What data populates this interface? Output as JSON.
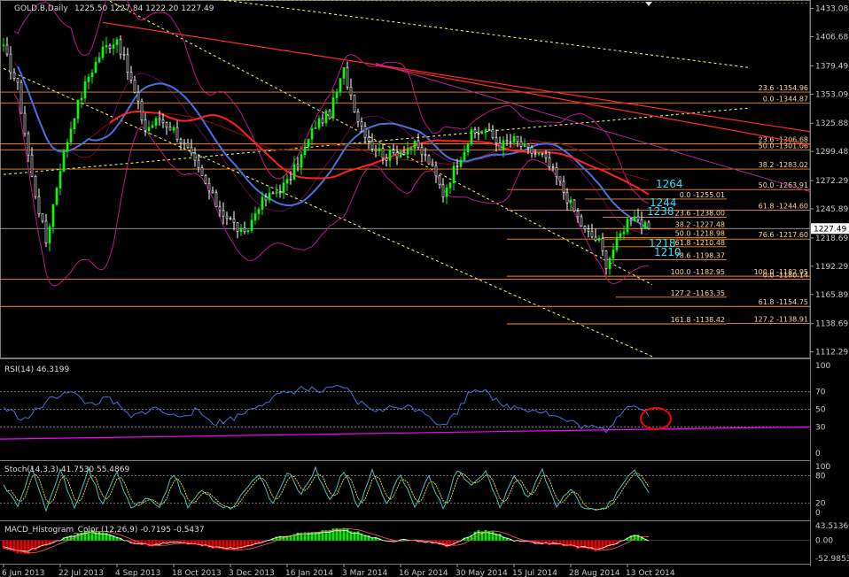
{
  "window": {
    "symbol_line": "GOLD.B,Daily",
    "ohlc_line": "1225.50 1227.84 1222.20 1227.49",
    "last_price_label": "1227.49"
  },
  "colors": {
    "background": "#000000",
    "candle_up": "#00ff00",
    "candle_down": "#ffffff",
    "ma_blue": "#4a6fdf",
    "ma_red": "#ff2020",
    "bollinger": "#c0168c",
    "fib_line": "#ff8c1a",
    "fib_text": "#ffd39a",
    "trend_red": "#ff2a2a",
    "trend_magenta": "#b02aa8",
    "dotted_yellow": "#ffff66",
    "rsi_line": "#4a6fdf",
    "rsi_trend": "#ff00ff",
    "stoch_main": "#4fbfbf",
    "stoch_signal": "#ffe040",
    "macd_up": "#00ee00",
    "macd_down": "#ee0000",
    "cyan_label": "#33e0ff",
    "highlight_circle": "#ff0000",
    "grid_text": "#c8c8c8"
  },
  "chart_data": [
    {
      "type": "line",
      "panel": "price",
      "title": "GOLD.B,Daily",
      "y_ticks": [
        "1433.08",
        "1406.68",
        "1379.49",
        "1353.09",
        "1325.88",
        "1299.48",
        "1272.29",
        "1245.89",
        "1218.69",
        "1192.29",
        "1165.89",
        "1138.69",
        "1112.29"
      ],
      "ylim": [
        1107,
        1441
      ],
      "x_ticks": [
        "6 Jun 2013",
        "22 Jul 2013",
        "4 Sep 2013",
        "18 Oct 2013",
        "3 Dec 2013",
        "16 Jan 2014",
        "3 Mar 2014",
        "16 Apr 2014",
        "30 May 2014",
        "15 Jul 2014",
        "28 Aug 2014",
        "13 Oct 2014"
      ],
      "x_tick_index": [
        0,
        16,
        32,
        48,
        64,
        80,
        96,
        112,
        128,
        144,
        160,
        176
      ],
      "bar_count": 183,
      "close_knots": [
        [
          0,
          1395
        ],
        [
          4,
          1360
        ],
        [
          8,
          1275
        ],
        [
          12,
          1215
        ],
        [
          16,
          1285
        ],
        [
          20,
          1335
        ],
        [
          24,
          1370
        ],
        [
          28,
          1395
        ],
        [
          32,
          1405
        ],
        [
          36,
          1365
        ],
        [
          40,
          1320
        ],
        [
          44,
          1330
        ],
        [
          48,
          1320
        ],
        [
          52,
          1300
        ],
        [
          56,
          1275
        ],
        [
          60,
          1250
        ],
        [
          64,
          1235
        ],
        [
          68,
          1220
        ],
        [
          72,
          1250
        ],
        [
          76,
          1260
        ],
        [
          80,
          1270
        ],
        [
          84,
          1295
        ],
        [
          88,
          1325
        ],
        [
          92,
          1335
        ],
        [
          96,
          1375
        ],
        [
          100,
          1330
        ],
        [
          104,
          1305
        ],
        [
          108,
          1295
        ],
        [
          112,
          1300
        ],
        [
          116,
          1305
        ],
        [
          120,
          1290
        ],
        [
          124,
          1260
        ],
        [
          128,
          1290
        ],
        [
          132,
          1315
        ],
        [
          136,
          1320
        ],
        [
          140,
          1305
        ],
        [
          144,
          1310
        ],
        [
          148,
          1300
        ],
        [
          152,
          1295
        ],
        [
          156,
          1275
        ],
        [
          160,
          1250
        ],
        [
          164,
          1225
        ],
        [
          168,
          1215
        ],
        [
          170,
          1195
        ],
        [
          173,
          1215
        ],
        [
          176,
          1235
        ],
        [
          178,
          1242
        ],
        [
          180,
          1230
        ],
        [
          182,
          1227.49
        ]
      ],
      "fib_levels": [
        {
          "label": "23.6 -1354.96",
          "value": 1354.96
        },
        {
          "label": "0.0 -1344.87",
          "value": 1344.87
        },
        {
          "label": "23.6 -1306.68",
          "value": 1306.68
        },
        {
          "label": "50.0 -1301.06",
          "value": 1301.06
        },
        {
          "label": "38.2 -1283.02",
          "value": 1283.02
        },
        {
          "label": "50.0 -1263.91",
          "value": 1263.91
        },
        {
          "label": "0.0 -1255.01",
          "value": 1255.01
        },
        {
          "label": "61.8 -1244.60",
          "value": 1244.6
        },
        {
          "label": "23.6 -1238.00",
          "value": 1238.0
        },
        {
          "label": "38.2 -1227.48",
          "value": 1227.48
        },
        {
          "label": "50.0 -1218.98",
          "value": 1218.98
        },
        {
          "label": "76.6 -1217.60",
          "value": 1217.6
        },
        {
          "label": "61.8 -1210.48",
          "value": 1210.48
        },
        {
          "label": "78.6 -1198.37",
          "value": 1198.37
        },
        {
          "label": "100.0 -1182.95",
          "value": 1182.95
        },
        {
          "label": "100.0 -1182.95",
          "value": 1182.95
        },
        {
          "label": "0.0 -1180.14",
          "value": 1180.14
        },
        {
          "label": "127.2 -1163.35",
          "value": 1163.35
        },
        {
          "label": "61.8 -1154.75",
          "value": 1154.75
        },
        {
          "label": "161.8 -1138.42",
          "value": 1138.42
        },
        {
          "label": "127.2 -1138.91",
          "value": 1138.91
        }
      ],
      "annotations": [
        "1264",
        "1244",
        "1238",
        "1218",
        "1210"
      ]
    },
    {
      "type": "line",
      "panel": "rsi",
      "title": "RSI(14) 46.3199",
      "y_ticks": [
        "100",
        "70",
        "50",
        "30",
        "0"
      ],
      "ylim": [
        0,
        100
      ],
      "knots": [
        [
          0,
          52
        ],
        [
          6,
          38
        ],
        [
          12,
          58
        ],
        [
          18,
          72
        ],
        [
          24,
          56
        ],
        [
          30,
          62
        ],
        [
          36,
          40
        ],
        [
          42,
          52
        ],
        [
          48,
          42
        ],
        [
          54,
          48
        ],
        [
          60,
          34
        ],
        [
          66,
          42
        ],
        [
          72,
          56
        ],
        [
          78,
          66
        ],
        [
          84,
          74
        ],
        [
          90,
          70
        ],
        [
          96,
          76
        ],
        [
          100,
          58
        ],
        [
          106,
          48
        ],
        [
          112,
          54
        ],
        [
          118,
          50
        ],
        [
          124,
          30
        ],
        [
          128,
          48
        ],
        [
          132,
          72
        ],
        [
          136,
          74
        ],
        [
          140,
          54
        ],
        [
          146,
          52
        ],
        [
          152,
          48
        ],
        [
          158,
          38
        ],
        [
          164,
          30
        ],
        [
          170,
          26
        ],
        [
          176,
          56
        ],
        [
          180,
          50
        ],
        [
          182,
          46.3
        ]
      ]
    },
    {
      "type": "line",
      "panel": "stochastic",
      "title": "Stoch(14,3,3) 41.7530 55.4869",
      "y_ticks": [
        "100",
        "80",
        "20",
        "0"
      ],
      "ylim": [
        0,
        100
      ],
      "knots": [
        [
          0,
          60
        ],
        [
          4,
          10
        ],
        [
          8,
          95
        ],
        [
          12,
          5
        ],
        [
          16,
          90
        ],
        [
          20,
          10
        ],
        [
          24,
          95
        ],
        [
          28,
          15
        ],
        [
          32,
          90
        ],
        [
          36,
          5
        ],
        [
          40,
          30
        ],
        [
          44,
          15
        ],
        [
          48,
          85
        ],
        [
          52,
          10
        ],
        [
          56,
          50
        ],
        [
          60,
          20
        ],
        [
          64,
          8
        ],
        [
          68,
          45
        ],
        [
          72,
          85
        ],
        [
          76,
          15
        ],
        [
          80,
          90
        ],
        [
          84,
          40
        ],
        [
          88,
          95
        ],
        [
          92,
          25
        ],
        [
          96,
          90
        ],
        [
          100,
          10
        ],
        [
          104,
          90
        ],
        [
          108,
          15
        ],
        [
          112,
          85
        ],
        [
          116,
          10
        ],
        [
          120,
          80
        ],
        [
          124,
          5
        ],
        [
          128,
          95
        ],
        [
          132,
          60
        ],
        [
          136,
          90
        ],
        [
          140,
          10
        ],
        [
          144,
          80
        ],
        [
          148,
          30
        ],
        [
          152,
          90
        ],
        [
          156,
          15
        ],
        [
          160,
          50
        ],
        [
          164,
          5
        ],
        [
          170,
          10
        ],
        [
          174,
          50
        ],
        [
          178,
          95
        ],
        [
          182,
          41.75
        ]
      ]
    },
    {
      "type": "bar",
      "panel": "macd",
      "title": "MACD_Histogram_Color (12,26,9) -0.7195 -0.5437",
      "y_ticks": [
        "43.5136",
        "0.00",
        "-52.9853"
      ],
      "ylim": [
        -52.9853,
        43.5136
      ],
      "knots": [
        [
          0,
          -20
        ],
        [
          6,
          -42
        ],
        [
          12,
          -15
        ],
        [
          18,
          10
        ],
        [
          24,
          30
        ],
        [
          30,
          20
        ],
        [
          36,
          -8
        ],
        [
          42,
          -18
        ],
        [
          48,
          -5
        ],
        [
          54,
          -14
        ],
        [
          60,
          -24
        ],
        [
          66,
          -30
        ],
        [
          72,
          -8
        ],
        [
          78,
          12
        ],
        [
          84,
          22
        ],
        [
          90,
          30
        ],
        [
          96,
          36
        ],
        [
          102,
          18
        ],
        [
          108,
          -4
        ],
        [
          114,
          2
        ],
        [
          120,
          -6
        ],
        [
          126,
          -20
        ],
        [
          130,
          5
        ],
        [
          134,
          30
        ],
        [
          138,
          28
        ],
        [
          144,
          0
        ],
        [
          150,
          -8
        ],
        [
          156,
          -12
        ],
        [
          162,
          -22
        ],
        [
          168,
          -32
        ],
        [
          174,
          -4
        ],
        [
          178,
          18
        ],
        [
          182,
          -0.72
        ]
      ]
    }
  ]
}
